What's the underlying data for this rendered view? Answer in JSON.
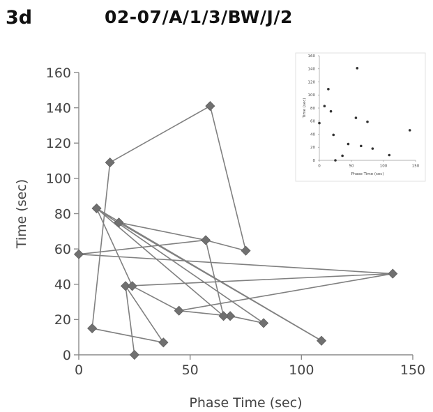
{
  "header": {
    "panel_label": "3d",
    "title": "02-07/A/1/3/BW/J/2"
  },
  "chart_data": [
    {
      "type": "line",
      "markers": "diamond",
      "xlabel": "Phase Time (sec)",
      "ylabel": "Time (sec)",
      "xlim": [
        0,
        150
      ],
      "ylim": [
        0,
        160
      ],
      "xticks": [
        0,
        50,
        100,
        150
      ],
      "yticks": [
        0,
        20,
        40,
        60,
        80,
        100,
        120,
        140,
        160
      ],
      "grid": false,
      "legend": "none",
      "color": "#808080",
      "series": [
        {
          "x": [
            25,
            21,
            38,
            6,
            14,
            59,
            75,
            57,
            0,
            141,
            45,
            68,
            83,
            8,
            109,
            18,
            57,
            65,
            8,
            24,
            45,
            141,
            21
          ],
          "y": [
            0,
            39,
            7,
            15,
            109,
            141,
            59,
            65,
            57,
            46,
            25,
            22,
            18,
            83,
            8,
            75,
            65,
            22,
            83,
            39,
            25,
            46,
            39
          ],
          "values_note": ""
        }
      ]
    },
    {
      "type": "scatter",
      "xlabel": "Phase Time (sec)",
      "ylabel": "Time (sec)",
      "xlim": [
        0,
        150
      ],
      "ylim": [
        0,
        160
      ],
      "xticks": [
        0,
        50,
        100,
        150
      ],
      "yticks": [
        0,
        20,
        40,
        60,
        80,
        100,
        120,
        140,
        160
      ],
      "grid": false,
      "legend": "none",
      "color": "#333333",
      "series": [
        {
          "x": [
            0,
            8,
            14,
            18,
            22,
            25,
            36,
            45,
            57,
            59,
            65,
            75,
            83,
            109,
            141
          ],
          "y": [
            57,
            83,
            109,
            75,
            39,
            0,
            7,
            25,
            65,
            141,
            22,
            59,
            18,
            8,
            46
          ]
        }
      ]
    }
  ]
}
